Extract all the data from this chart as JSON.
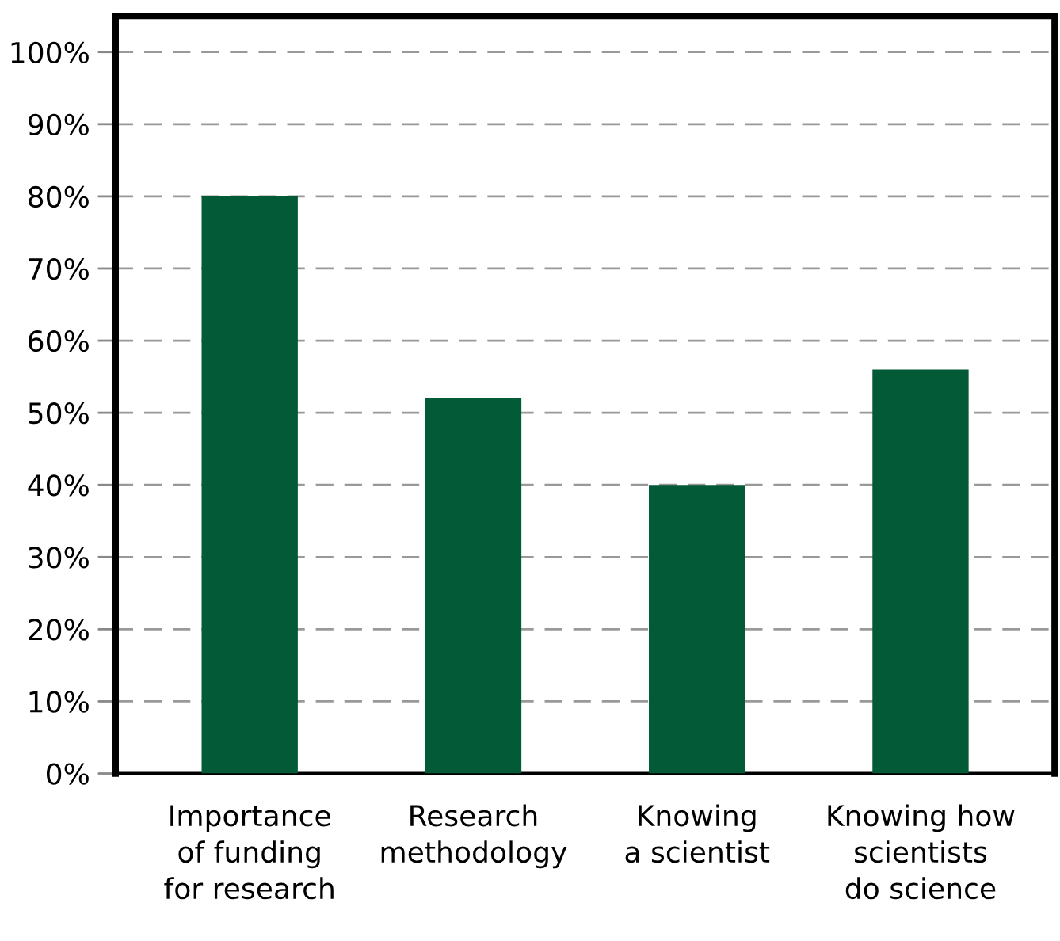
{
  "chart_data": {
    "type": "bar",
    "categories": [
      "Importance\nof funding\nfor research",
      "Research\nmethodology",
      "Knowing\na scientist",
      "Knowing how\nscientists\ndo science"
    ],
    "values": [
      80,
      52,
      40,
      56
    ],
    "color": "#035a37",
    "ylim": [
      0,
      105
    ],
    "yticks": [
      {
        "value": 0,
        "label": "0%"
      },
      {
        "value": 10,
        "label": "10%"
      },
      {
        "value": 20,
        "label": "20%"
      },
      {
        "value": 30,
        "label": "30%"
      },
      {
        "value": 40,
        "label": "40%"
      },
      {
        "value": 50,
        "label": "50%"
      },
      {
        "value": 60,
        "label": "60%"
      },
      {
        "value": 70,
        "label": "70%"
      },
      {
        "value": 80,
        "label": "80%"
      },
      {
        "value": 90,
        "label": "90%"
      },
      {
        "value": 100,
        "label": "100%"
      }
    ],
    "grid": "y"
  }
}
